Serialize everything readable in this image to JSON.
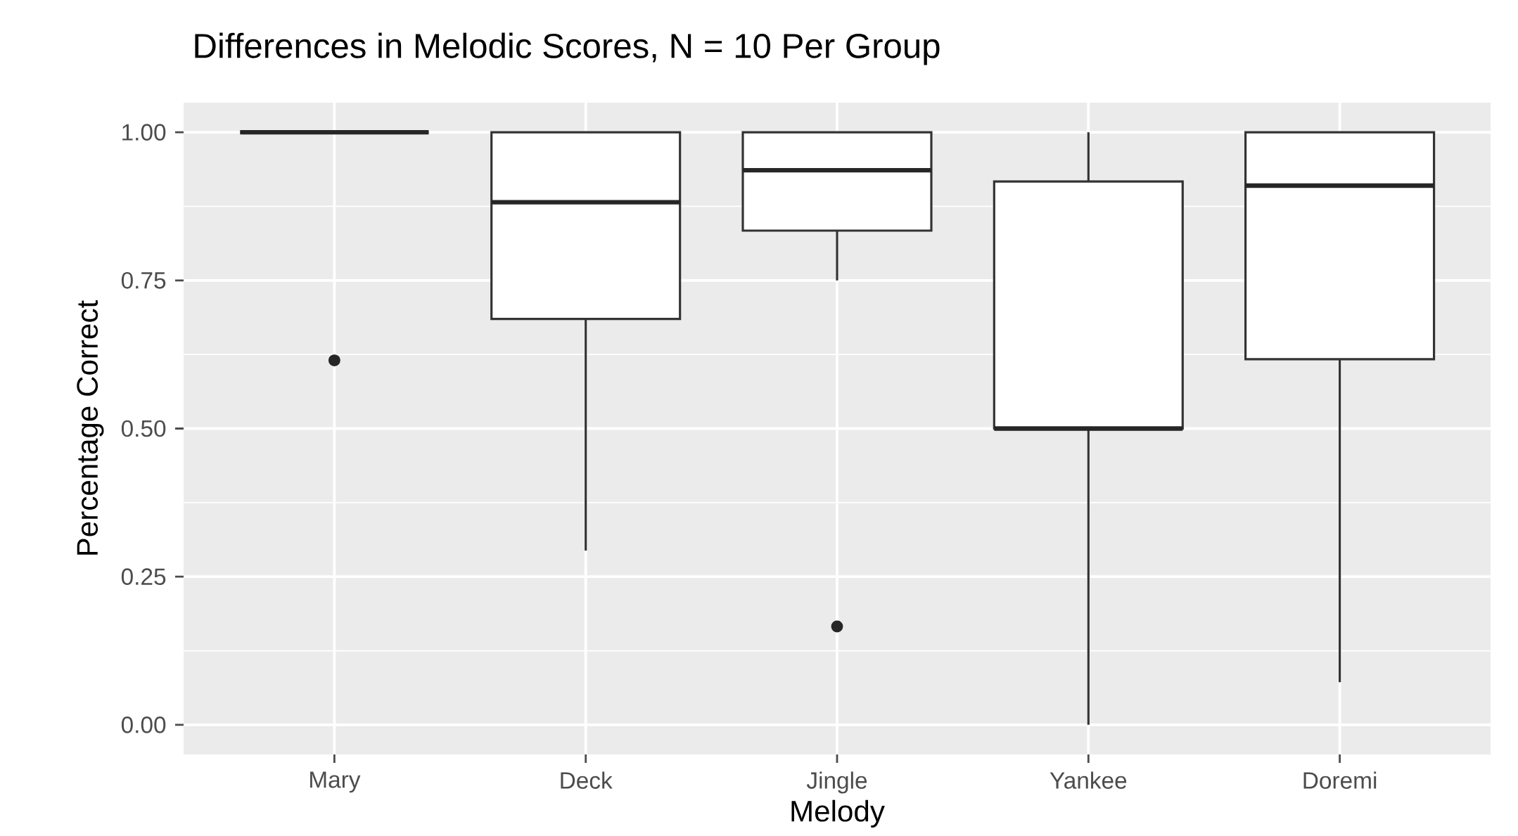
{
  "chart_data": {
    "type": "box",
    "title": "Differences in Melodic Scores, N = 10 Per Group",
    "xlabel": "Melody",
    "ylabel": "Percentage Correct",
    "categories": [
      "Mary",
      "Deck",
      "Jingle",
      "Yankee",
      "Doremi"
    ],
    "boxes": [
      {
        "low": 1.0,
        "q1": 1.0,
        "median": 1.0,
        "q3": 1.0,
        "high": 1.0,
        "outliers": [
          0.615
        ]
      },
      {
        "low": 0.294,
        "q1": 0.685,
        "median": 0.882,
        "q3": 1.0,
        "high": 1.0
      },
      {
        "low": 0.75,
        "q1": 0.834,
        "median": 0.936,
        "q3": 1.0,
        "high": 1.0,
        "outliers": [
          0.166
        ]
      },
      {
        "low": 0.0,
        "q1": 0.5,
        "median": 0.5,
        "q3": 0.917,
        "high": 1.0
      },
      {
        "low": 0.072,
        "q1": 0.617,
        "median": 0.91,
        "q3": 1.0,
        "high": 1.0
      }
    ],
    "ylim": [
      -0.05,
      1.05
    ],
    "yticks": [
      {
        "value": 0,
        "label": "0.00"
      },
      {
        "value": 0.25,
        "label": "0.25"
      },
      {
        "value": 0.5,
        "label": "0.50"
      },
      {
        "value": 0.75,
        "label": "0.75"
      },
      {
        "value": 1,
        "label": "1.00"
      }
    ],
    "grid": true
  }
}
